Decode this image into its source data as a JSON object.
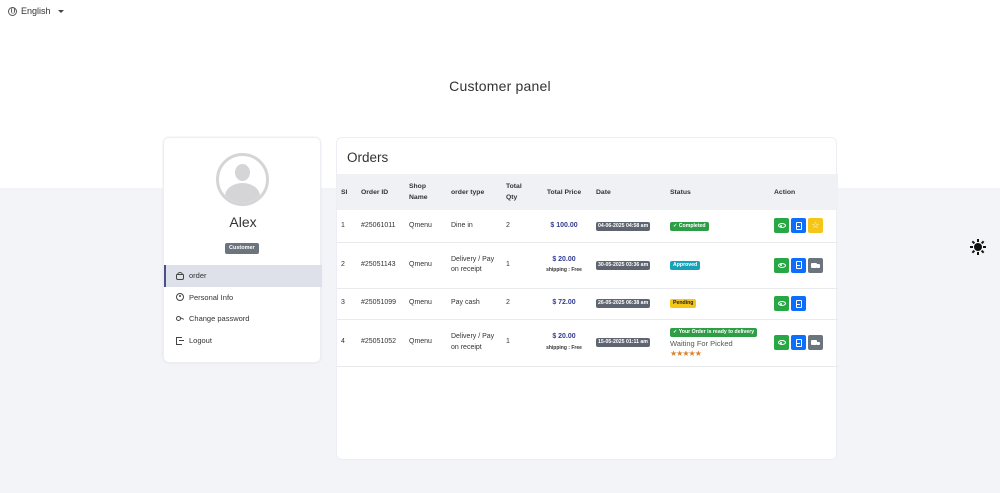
{
  "header": {
    "language": "English",
    "panel_title": "Customer panel"
  },
  "sidebar": {
    "user_name": "Alex",
    "role": "Customer",
    "items": [
      {
        "label": "order",
        "icon": "basket-icon",
        "active": true
      },
      {
        "label": "Personal Info",
        "icon": "person-circle-icon",
        "active": false
      },
      {
        "label": "Change password",
        "icon": "key-icon",
        "active": false
      },
      {
        "label": "Logout",
        "icon": "logout-icon",
        "active": false
      }
    ]
  },
  "orders": {
    "title": "Orders",
    "columns": {
      "sl": "Sl",
      "order_id": "Order ID",
      "shop_name": "Shop Name",
      "order_type": "order type",
      "total_qty": "Total Qty",
      "total_price": "Total Price",
      "date": "Date",
      "status": "Status",
      "action": "Action"
    },
    "rows": [
      {
        "sl": "1",
        "order_id": "#25061011",
        "shop": "Qmenu",
        "type": "Dine in",
        "qty": "2",
        "price": "$ 100.00",
        "shipping": "",
        "date": "04-06-2025 04:58 am",
        "status": "Completed",
        "status_color": "#2e9d46",
        "status_extra": "",
        "rating_stars": 0,
        "actions": [
          "view",
          "invoice",
          "review"
        ]
      },
      {
        "sl": "2",
        "order_id": "#25051143",
        "shop": "Qmenu",
        "type": "Delivery / Pay on receipt",
        "qty": "1",
        "price": "$ 20.00",
        "shipping": "shipping : Free",
        "date": "30-05-2025 03:36 am",
        "status": "Approved",
        "status_color": "#17a2b8",
        "status_extra": "",
        "rating_stars": 0,
        "actions": [
          "view",
          "invoice",
          "track"
        ]
      },
      {
        "sl": "3",
        "order_id": "#25051099",
        "shop": "Qmenu",
        "type": "Pay cash",
        "qty": "2",
        "price": "$ 72.00",
        "shipping": "",
        "date": "26-05-2025 06:38 am",
        "status": "Pending",
        "status_color": "#f5c518",
        "status_extra": "",
        "rating_stars": 0,
        "actions": [
          "view",
          "invoice"
        ]
      },
      {
        "sl": "4",
        "order_id": "#25051052",
        "shop": "Qmenu",
        "type": "Delivery / Pay on receipt",
        "qty": "1",
        "price": "$ 20.00",
        "shipping": "shipping : Free",
        "date": "15-05-2025 01:11 am",
        "status": "Your Order is ready to delivery",
        "status_color": "#2e9d46",
        "status_extra": "Waiting For Picked",
        "rating_stars": 5,
        "actions": [
          "view",
          "invoice",
          "track"
        ]
      }
    ]
  }
}
